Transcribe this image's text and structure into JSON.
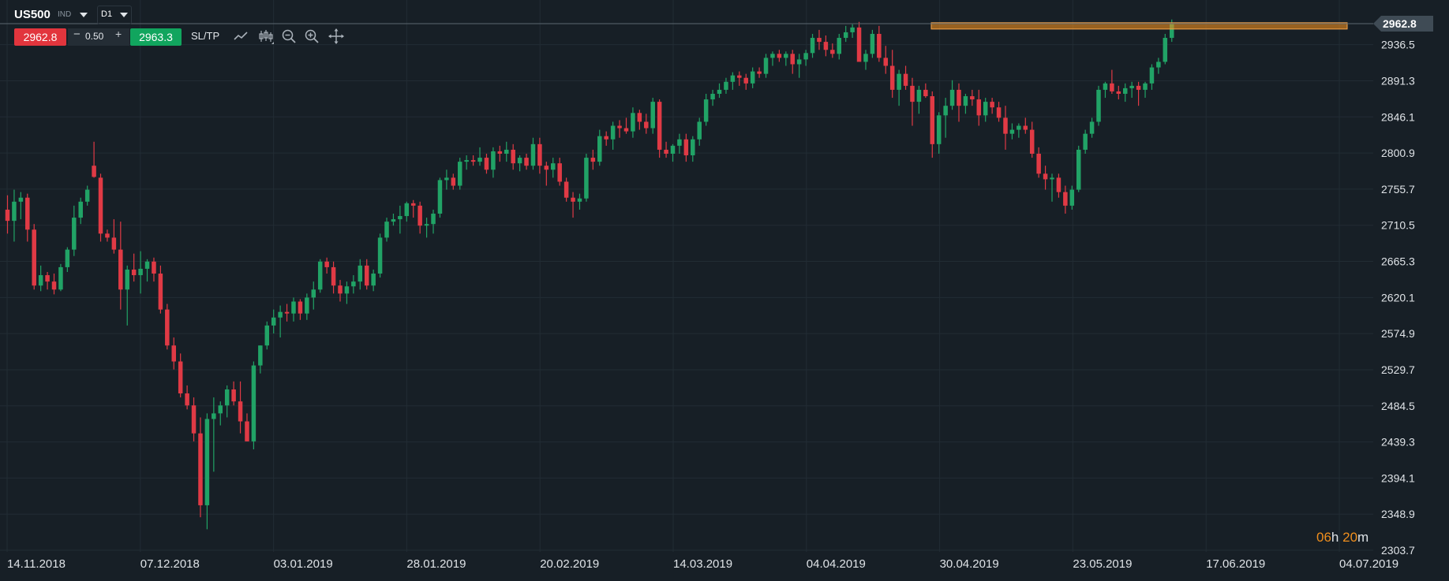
{
  "toolbar": {
    "symbol": "US500",
    "market": "IND",
    "timeframe": "D1",
    "sell_price": "2962.8",
    "spread": "0.50",
    "minus": "−",
    "plus": "+",
    "buy_price": "2963.3",
    "sltp_label": "SL/TP",
    "icons": [
      "line-chart-icon",
      "candles-icon",
      "zoom-out-icon",
      "zoom-in-icon",
      "crosshair-icon"
    ]
  },
  "timer": {
    "hours": "06",
    "h_unit": "h",
    "minutes": "20",
    "m_unit": "m"
  },
  "colors": {
    "background": "#171f26",
    "grid": "#222c34",
    "bull": "#21a366",
    "bear": "#e03a45",
    "highlight": "#ef8e1d",
    "price_tag": "#3f4b55"
  },
  "chart_data": {
    "type": "candlestick",
    "symbol": "US500",
    "timeframe": "D1",
    "current_price": 2962.8,
    "resistance_level": 2960.0,
    "grid": true,
    "y_axis": {
      "ticks": [
        "2936.5",
        "2891.3",
        "2846.1",
        "2800.9",
        "2755.7",
        "2710.5",
        "2665.3",
        "2620.1",
        "2574.9",
        "2529.7",
        "2484.5",
        "2439.3",
        "2394.1",
        "2348.9",
        "2303.7"
      ],
      "ylim": [
        2303.7,
        2962.8
      ]
    },
    "x_axis": {
      "ticks": [
        "14.11.2018",
        "07.12.2018",
        "03.01.2019",
        "28.01.2019",
        "20.02.2019",
        "14.03.2019",
        "04.04.2019",
        "30.04.2019",
        "23.05.2019",
        "17.06.2019",
        "04.07.2019"
      ]
    },
    "candles": [
      [
        2730,
        2748,
        2700,
        2716
      ],
      [
        2716,
        2755,
        2690,
        2740
      ],
      [
        2740,
        2752,
        2718,
        2745
      ],
      [
        2745,
        2750,
        2690,
        2705
      ],
      [
        2705,
        2712,
        2630,
        2635
      ],
      [
        2635,
        2660,
        2628,
        2648
      ],
      [
        2648,
        2652,
        2630,
        2640
      ],
      [
        2640,
        2650,
        2624,
        2630
      ],
      [
        2630,
        2662,
        2628,
        2658
      ],
      [
        2658,
        2683,
        2652,
        2680
      ],
      [
        2680,
        2735,
        2672,
        2720
      ],
      [
        2720,
        2745,
        2712,
        2740
      ],
      [
        2740,
        2760,
        2735,
        2755
      ],
      [
        2785,
        2815,
        2770,
        2771
      ],
      [
        2770,
        2775,
        2690,
        2700
      ],
      [
        2700,
        2705,
        2690,
        2695
      ],
      [
        2695,
        2718,
        2675,
        2680
      ],
      [
        2680,
        2715,
        2605,
        2630
      ],
      [
        2630,
        2660,
        2585,
        2655
      ],
      [
        2655,
        2675,
        2640,
        2648
      ],
      [
        2648,
        2678,
        2625,
        2656
      ],
      [
        2656,
        2668,
        2640,
        2665
      ],
      [
        2665,
        2670,
        2640,
        2650
      ],
      [
        2650,
        2660,
        2600,
        2605
      ],
      [
        2605,
        2612,
        2555,
        2560
      ],
      [
        2560,
        2570,
        2530,
        2540
      ],
      [
        2540,
        2550,
        2495,
        2500
      ],
      [
        2500,
        2510,
        2480,
        2485
      ],
      [
        2485,
        2495,
        2440,
        2450
      ],
      [
        2450,
        2470,
        2345,
        2360
      ],
      [
        2360,
        2475,
        2330,
        2468
      ],
      [
        2468,
        2495,
        2402,
        2475
      ],
      [
        2475,
        2490,
        2460,
        2485
      ],
      [
        2485,
        2510,
        2470,
        2505
      ],
      [
        2505,
        2515,
        2485,
        2490
      ],
      [
        2490,
        2515,
        2450,
        2465
      ],
      [
        2465,
        2475,
        2440,
        2440
      ],
      [
        2440,
        2540,
        2430,
        2535
      ],
      [
        2535,
        2560,
        2525,
        2560
      ],
      [
        2560,
        2590,
        2555,
        2585
      ],
      [
        2585,
        2605,
        2575,
        2595
      ],
      [
        2595,
        2610,
        2570,
        2602
      ],
      [
        2602,
        2612,
        2590,
        2600
      ],
      [
        2600,
        2620,
        2590,
        2615
      ],
      [
        2615,
        2618,
        2592,
        2600
      ],
      [
        2600,
        2625,
        2592,
        2620
      ],
      [
        2620,
        2640,
        2605,
        2630
      ],
      [
        2630,
        2668,
        2626,
        2665
      ],
      [
        2665,
        2670,
        2650,
        2658
      ],
      [
        2658,
        2665,
        2625,
        2635
      ],
      [
        2635,
        2642,
        2615,
        2625
      ],
      [
        2625,
        2640,
        2612,
        2634
      ],
      [
        2634,
        2648,
        2625,
        2640
      ],
      [
        2640,
        2668,
        2630,
        2660
      ],
      [
        2660,
        2668,
        2630,
        2635
      ],
      [
        2635,
        2655,
        2628,
        2650
      ],
      [
        2650,
        2700,
        2645,
        2695
      ],
      [
        2695,
        2720,
        2690,
        2715
      ],
      [
        2715,
        2725,
        2710,
        2718
      ],
      [
        2718,
        2735,
        2700,
        2722
      ],
      [
        2722,
        2740,
        2715,
        2738
      ],
      [
        2738,
        2742,
        2720,
        2735
      ],
      [
        2735,
        2740,
        2700,
        2710
      ],
      [
        2710,
        2720,
        2695,
        2712
      ],
      [
        2712,
        2730,
        2700,
        2725
      ],
      [
        2725,
        2770,
        2720,
        2767
      ],
      [
        2767,
        2780,
        2755,
        2770
      ],
      [
        2770,
        2775,
        2755,
        2760
      ],
      [
        2760,
        2795,
        2755,
        2790
      ],
      [
        2790,
        2798,
        2780,
        2792
      ],
      [
        2792,
        2798,
        2785,
        2790
      ],
      [
        2790,
        2808,
        2785,
        2795
      ],
      [
        2795,
        2800,
        2775,
        2780
      ],
      [
        2780,
        2808,
        2770,
        2803
      ],
      [
        2803,
        2810,
        2790,
        2800
      ],
      [
        2800,
        2815,
        2790,
        2805
      ],
      [
        2805,
        2812,
        2780,
        2788
      ],
      [
        2788,
        2798,
        2778,
        2795
      ],
      [
        2795,
        2800,
        2780,
        2785
      ],
      [
        2785,
        2820,
        2780,
        2812
      ],
      [
        2812,
        2820,
        2775,
        2785
      ],
      [
        2785,
        2790,
        2760,
        2780
      ],
      [
        2780,
        2795,
        2770,
        2788
      ],
      [
        2788,
        2795,
        2760,
        2765
      ],
      [
        2765,
        2770,
        2740,
        2745
      ],
      [
        2745,
        2752,
        2720,
        2740
      ],
      [
        2740,
        2750,
        2730,
        2744
      ],
      [
        2744,
        2800,
        2740,
        2795
      ],
      [
        2795,
        2805,
        2780,
        2790
      ],
      [
        2790,
        2830,
        2785,
        2822
      ],
      [
        2822,
        2828,
        2810,
        2818
      ],
      [
        2818,
        2840,
        2805,
        2835
      ],
      [
        2835,
        2842,
        2820,
        2832
      ],
      [
        2832,
        2845,
        2825,
        2828
      ],
      [
        2828,
        2858,
        2820,
        2851
      ],
      [
        2851,
        2855,
        2830,
        2840
      ],
      [
        2840,
        2850,
        2825,
        2832
      ],
      [
        2832,
        2870,
        2825,
        2865
      ],
      [
        2865,
        2868,
        2795,
        2805
      ],
      [
        2805,
        2815,
        2795,
        2800
      ],
      [
        2800,
        2812,
        2790,
        2810
      ],
      [
        2810,
        2825,
        2800,
        2818
      ],
      [
        2818,
        2825,
        2790,
        2798
      ],
      [
        2798,
        2822,
        2790,
        2818
      ],
      [
        2818,
        2845,
        2810,
        2840
      ],
      [
        2840,
        2875,
        2835,
        2868
      ],
      [
        2868,
        2880,
        2860,
        2875
      ],
      [
        2875,
        2888,
        2870,
        2880
      ],
      [
        2880,
        2895,
        2875,
        2890
      ],
      [
        2890,
        2902,
        2880,
        2898
      ],
      [
        2898,
        2903,
        2885,
        2895
      ],
      [
        2895,
        2900,
        2880,
        2888
      ],
      [
        2888,
        2908,
        2882,
        2903
      ],
      [
        2903,
        2908,
        2895,
        2900
      ],
      [
        2900,
        2925,
        2895,
        2920
      ],
      [
        2920,
        2928,
        2910,
        2925
      ],
      [
        2925,
        2930,
        2915,
        2920
      ],
      [
        2920,
        2928,
        2910,
        2925
      ],
      [
        2925,
        2930,
        2900,
        2912
      ],
      [
        2912,
        2925,
        2895,
        2918
      ],
      [
        2918,
        2930,
        2910,
        2926
      ],
      [
        2926,
        2950,
        2920,
        2945
      ],
      [
        2945,
        2955,
        2930,
        2940
      ],
      [
        2940,
        2948,
        2922,
        2930
      ],
      [
        2930,
        2938,
        2920,
        2925
      ],
      [
        2925,
        2950,
        2918,
        2945
      ],
      [
        2945,
        2960,
        2940,
        2952
      ],
      [
        2952,
        2962,
        2945,
        2958
      ],
      [
        2958,
        2965,
        2920,
        2915
      ],
      [
        2915,
        2930,
        2905,
        2925
      ],
      [
        2925,
        2955,
        2920,
        2950
      ],
      [
        2950,
        2960,
        2915,
        2920
      ],
      [
        2920,
        2935,
        2900,
        2910
      ],
      [
        2910,
        2930,
        2870,
        2880
      ],
      [
        2880,
        2905,
        2860,
        2900
      ],
      [
        2900,
        2910,
        2880,
        2885
      ],
      [
        2885,
        2895,
        2835,
        2865
      ],
      [
        2865,
        2885,
        2850,
        2880
      ],
      [
        2880,
        2888,
        2870,
        2872
      ],
      [
        2872,
        2878,
        2795,
        2812
      ],
      [
        2812,
        2852,
        2800,
        2848
      ],
      [
        2848,
        2870,
        2820,
        2860
      ],
      [
        2860,
        2892,
        2855,
        2880
      ],
      [
        2880,
        2888,
        2840,
        2860
      ],
      [
        2860,
        2875,
        2850,
        2872
      ],
      [
        2872,
        2880,
        2860,
        2868
      ],
      [
        2868,
        2880,
        2835,
        2848
      ],
      [
        2848,
        2870,
        2840,
        2865
      ],
      [
        2865,
        2870,
        2850,
        2858
      ],
      [
        2858,
        2865,
        2840,
        2845
      ],
      [
        2845,
        2860,
        2805,
        2825
      ],
      [
        2825,
        2838,
        2818,
        2830
      ],
      [
        2830,
        2838,
        2820,
        2835
      ],
      [
        2835,
        2845,
        2825,
        2830
      ],
      [
        2830,
        2840,
        2795,
        2800
      ],
      [
        2800,
        2808,
        2770,
        2775
      ],
      [
        2775,
        2785,
        2755,
        2768
      ],
      [
        2768,
        2775,
        2740,
        2770
      ],
      [
        2770,
        2775,
        2745,
        2752
      ],
      [
        2752,
        2760,
        2725,
        2735
      ],
      [
        2735,
        2760,
        2730,
        2755
      ],
      [
        2755,
        2810,
        2752,
        2805
      ],
      [
        2805,
        2830,
        2800,
        2825
      ],
      [
        2825,
        2845,
        2820,
        2840
      ],
      [
        2840,
        2885,
        2835,
        2880
      ],
      [
        2880,
        2890,
        2870,
        2888
      ],
      [
        2888,
        2905,
        2875,
        2878
      ],
      [
        2878,
        2885,
        2868,
        2875
      ],
      [
        2875,
        2888,
        2865,
        2882
      ],
      [
        2882,
        2890,
        2870,
        2885
      ],
      [
        2885,
        2890,
        2860,
        2880
      ],
      [
        2880,
        2890,
        2870,
        2888
      ],
      [
        2888,
        2912,
        2880,
        2908
      ],
      [
        2908,
        2920,
        2900,
        2915
      ],
      [
        2915,
        2950,
        2912,
        2945
      ],
      [
        2945,
        2968,
        2940,
        2962.8
      ]
    ]
  }
}
